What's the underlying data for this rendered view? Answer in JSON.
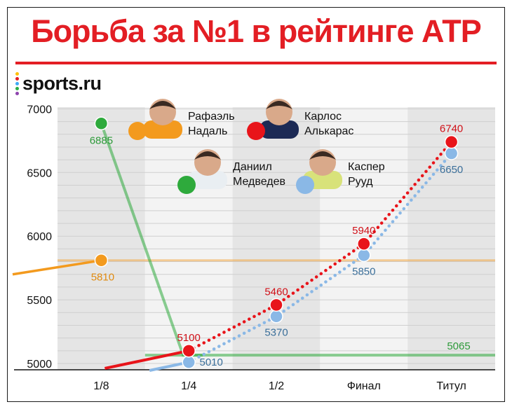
{
  "title": "Борьба за №1 в рейтинге АТР",
  "logo": {
    "text": "sports.ru",
    "dot_colors": [
      "#ffc107",
      "#e31e24",
      "#3fa9f5",
      "#2aae45",
      "#8e44ad"
    ]
  },
  "legend": [
    {
      "name": "Рафаэль Надаль",
      "line1": "Рафаэль",
      "line2": "Надаль",
      "color": "#f39a1e",
      "shirt": "#f39a1e"
    },
    {
      "name": "Карлос Алькарас",
      "line1": "Карлос",
      "line2": "Алькарас",
      "color": "#e8141a",
      "shirt": "#1c2a55"
    },
    {
      "name": "Даниил Медведев",
      "line1": "Даниил",
      "line2": "Медведев",
      "color": "#2eaa3c",
      "shirt": "#e9eef2"
    },
    {
      "name": "Каспер Рууд",
      "line1": "Каспер",
      "line2": "Рууд",
      "color": "#8ab8e6",
      "shirt": "#d8e27a"
    }
  ],
  "chart_data": {
    "type": "line",
    "title": "Борьба за №1 в рейтинге АТР",
    "categories": [
      "1/8",
      "1/4",
      "1/2",
      "Финал",
      "Титул"
    ],
    "ylim": [
      4950,
      7050
    ],
    "yticks": [
      5000,
      5500,
      6000,
      6500,
      7000
    ],
    "grid": true,
    "series": [
      {
        "name": "Рафаэль Надаль",
        "color": "#f39a1e",
        "style": "solid",
        "values": [
          5810,
          null,
          null,
          null,
          null
        ],
        "labels": [
          "5810",
          null,
          null,
          null,
          null
        ],
        "reference_line": 5810
      },
      {
        "name": "Даниил Медведев",
        "color": "#2eaa3c",
        "style": "solid",
        "values": [
          6885,
          5065,
          null,
          null,
          null
        ],
        "labels": [
          "6885",
          null,
          null,
          null,
          null
        ],
        "reference_line": 5065,
        "reference_label": "5065"
      },
      {
        "name": "Карлос Алькарас",
        "color": "#e8141a",
        "style": "dotted",
        "values": [
          null,
          5100,
          5460,
          5940,
          6740
        ],
        "labels": [
          null,
          "5100",
          "5460",
          "5940",
          "6740"
        ]
      },
      {
        "name": "Каспер Рууд",
        "color": "#8ab8e6",
        "style": "dotted",
        "values": [
          null,
          5010,
          5370,
          5850,
          6650
        ],
        "labels": [
          null,
          "5010",
          "5370",
          "5850",
          "6650"
        ]
      }
    ]
  }
}
